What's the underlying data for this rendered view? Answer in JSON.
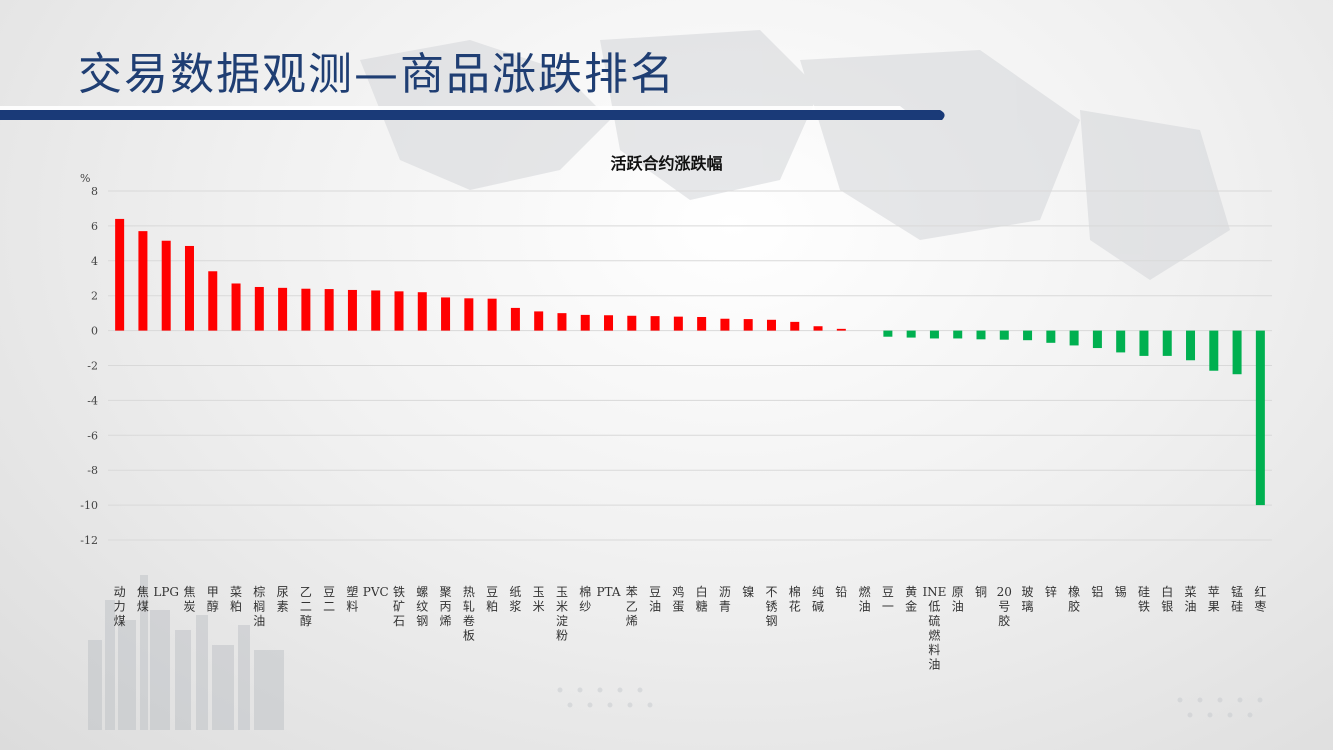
{
  "page": {
    "title": "交易数据观测—商品涨跌排名"
  },
  "colors": {
    "up": "#ff0000",
    "down": "#00b050",
    "title": "#1f3e73",
    "accent": "#1a3a78"
  },
  "chart_data": {
    "type": "bar",
    "title": "活跃合约涨跌幅",
    "ylabel": "%",
    "ylim": [
      -12,
      8
    ],
    "yticks": [
      8,
      6,
      4,
      2,
      0,
      -2,
      -4,
      -6,
      -8,
      -10,
      -12
    ],
    "grid": true,
    "categories": [
      "动力煤",
      "焦煤",
      "LPG",
      "焦炭",
      "甲醇",
      "菜粕",
      "棕榈油",
      "尿素",
      "乙二醇",
      "豆二",
      "塑料",
      "PVC",
      "铁矿石",
      "螺纹钢",
      "聚丙烯",
      "热轧卷板",
      "豆粕",
      "纸浆",
      "玉米",
      "玉米淀粉",
      "棉纱",
      "PTA",
      "苯乙烯",
      "豆油",
      "鸡蛋",
      "白糖",
      "沥青",
      "镍",
      "不锈钢",
      "棉花",
      "纯碱",
      "铅",
      "燃油",
      "豆一",
      "黄金",
      "INE低硫燃料油",
      "原油",
      "铜",
      "20号胶",
      "玻璃",
      "锌",
      "橡胶",
      "铝",
      "锡",
      "硅铁",
      "白银",
      "菜油",
      "苹果",
      "锰硅",
      "红枣"
    ],
    "values": [
      6.4,
      5.7,
      5.15,
      4.85,
      3.4,
      2.7,
      2.5,
      2.45,
      2.4,
      2.38,
      2.33,
      2.3,
      2.25,
      2.2,
      1.9,
      1.85,
      1.83,
      1.3,
      1.1,
      1.0,
      0.9,
      0.88,
      0.85,
      0.83,
      0.8,
      0.78,
      0.68,
      0.66,
      0.62,
      0.5,
      0.25,
      0.1,
      0.0,
      -0.35,
      -0.4,
      -0.45,
      -0.45,
      -0.5,
      -0.52,
      -0.55,
      -0.7,
      -0.85,
      -1.0,
      -1.25,
      -1.45,
      -1.45,
      -1.7,
      -2.3,
      -2.5,
      -10.0
    ]
  }
}
